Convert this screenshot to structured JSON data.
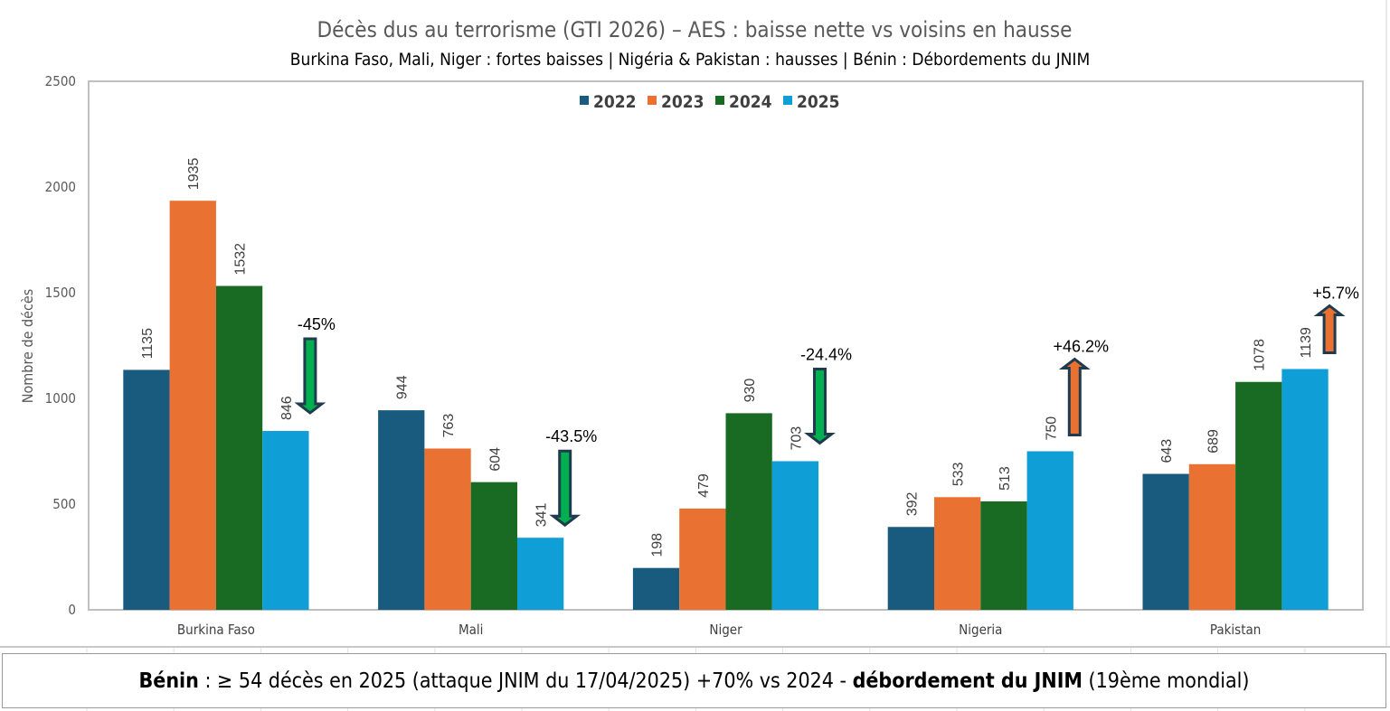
{
  "chart_data": {
    "type": "bar",
    "title": "Décès dus au terrorisme (GTI 2026) – AES : baisse nette vs voisins en hausse",
    "subtitle": "Burkina Faso, Mali, Niger : fortes baisses | Nigéria & Pakistan : hausses | Bénin : Débordements du JNIM",
    "xlabel": "",
    "ylabel": "Nombre de décès",
    "ylim": [
      0,
      2500
    ],
    "yticks": [
      0,
      500,
      1000,
      1500,
      2000,
      2500
    ],
    "grid": false,
    "legend_position": "top-center",
    "categories": [
      "Burkina Faso",
      "Mali",
      "Niger",
      "Nigeria",
      "Pakistan"
    ],
    "series": [
      {
        "name": "2022",
        "color": "#195b7e",
        "values": [
          1135,
          944,
          198,
          392,
          643
        ]
      },
      {
        "name": "2023",
        "color": "#e97132",
        "values": [
          1935,
          763,
          479,
          533,
          689
        ]
      },
      {
        "name": "2024",
        "color": "#196b24",
        "values": [
          1532,
          604,
          930,
          513,
          1078
        ]
      },
      {
        "name": "2025",
        "color": "#0f9ed5",
        "values": [
          846,
          341,
          703,
          750,
          1139
        ]
      }
    ],
    "annotations": [
      {
        "category": "Burkina Faso",
        "label": "-45%",
        "direction": "down",
        "color": "#00b050"
      },
      {
        "category": "Mali",
        "label": "-43.5%",
        "direction": "down",
        "color": "#00b050"
      },
      {
        "category": "Niger",
        "label": "-24.4%",
        "direction": "down",
        "color": "#00b050"
      },
      {
        "category": "Nigeria",
        "label": "+46.2%",
        "direction": "up",
        "color": "#e97132"
      },
      {
        "category": "Pakistan",
        "label": "+5.7%",
        "direction": "up",
        "color": "#e97132"
      }
    ]
  },
  "note": {
    "country": "Bénin",
    "text1": " : ≥ 54 décès en 2025 (attaque JNIM du 17/04/2025) +70% vs 2024 - ",
    "bold": "débordement du JNIM",
    "text2": " (19ème mondial)"
  }
}
